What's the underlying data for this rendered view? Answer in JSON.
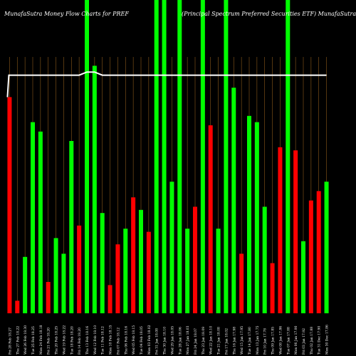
{
  "header": {
    "left": "MunafaSutra  Money Flow  Charts for PREF",
    "right": "(Principal Spectrum Preferred Securities ETF) MunafaSutra.com"
  },
  "chart_data": {
    "type": "bar",
    "title": "MunafaSutra  Money Flow  Charts for PREF",
    "subtitle": "(Principal Spectrum Preferred Securities ETF) MunafaSutra.com",
    "xlabel": "",
    "ylabel": "",
    "ylim": [
      0,
      100
    ],
    "grid": true,
    "colors": {
      "up": "#00ff00",
      "down": "#ff0000",
      "line": "#ffffff",
      "grid": "#8b5a1b",
      "background": "#000000"
    },
    "categories": [
      "Fri 28 Feb 2025",
      "Thu 27 Feb 2025",
      "Wed 26 Feb 2025",
      "Tue 25 Feb 2025",
      "Mon 24 Feb 2025",
      "Fri 21 Feb 2025",
      "Thu 20 Feb 2025",
      "Wed 19 Feb 2025",
      "Tue 18 Feb 2025",
      "Fri 14 Feb 2025",
      "Thu 13 Feb 2025",
      "Wed 12 Feb 2025",
      "Tue 11 Feb 2025",
      "Mon 10 Feb 2025",
      "Fri 07 Feb 2025",
      "Thu 06 Feb 2025",
      "Wed 05 Feb 2025",
      "Tue 04 Feb 2025",
      "Mon 03 Feb 2025",
      "Fri 31 Jan 2025",
      "Thu 30 Jan 2025",
      "Wed 29 Jan 2025",
      "Tue 28 Jan 2025",
      "Mon 27 Jan 2025",
      "Fri 24 Jan 2025",
      "Thu 23 Jan 2025",
      "Wed 22 Jan 2025",
      "Tue 21 Jan 2025",
      "Fri 17 Jan 2025",
      "Thu 16 Jan 2025",
      "Wed 15 Jan 2025",
      "Tue 14 Jan 2025",
      "Mon 13 Jan 2025",
      "Fri 10 Jan 2025",
      "Thu 09 Jan 2025",
      "Wed 08 Jan 2025",
      "Tue 07 Jan 2025",
      "Mon 06 Jan 2025",
      "Fri 03 Jan 2025",
      "Thu 02 Jan 2025",
      "Tue 31 Dec 2024",
      "Mon 30 Dec 2024"
    ],
    "tick_labels": [
      "Fri 28 Feb 18.27",
      "Thu 27 Feb 18.22",
      "Wed 26 Feb 18.30",
      "Tue 25 Feb 18.25",
      "Mon 24 Feb 18.18",
      "Fri 21 Feb 18.20",
      "Thu 20 Feb 18.25",
      "Wed 19 Feb 18.22",
      "Tue 18 Feb 18.20",
      "Fri 14 Feb 18.20",
      "Thu 13 Feb 18.16",
      "Wed 12 Feb 18.10",
      "Tue 11 Feb 18.12",
      "Mon 10 Feb 18.15",
      "Fri 07 Feb 18.12",
      "Thu 06 Feb 18.16",
      "Wed 05 Feb 18.15",
      "Tue 04 Feb 18.05",
      "Mon 03 Feb 18.02",
      "Fri 31 Jan 18.08",
      "Thu 30 Jan 18.10",
      "Wed 29 Jan 18.05",
      "Tue 28 Jan 18.06",
      "Mon 27 Jan 18.03",
      "Fri 24 Jan 18.07",
      "Thu 23 Jan 18.09",
      "Wed 22 Jan 18.10",
      "Tue 21 Jan 18.08",
      "Fri 17 Jan 18.02",
      "Thu 16 Jan 17.98",
      "Wed 15 Jan 17.95",
      "Tue 14 Jan 17.80",
      "Mon 13 Jan 17.75",
      "Fri 10 Jan 17.78",
      "Thu 09 Jan 17.85",
      "Wed 08 Jan 17.86",
      "Tue 07 Jan 17.88",
      "Mon 06 Jan 17.90",
      "Fri 03 Jan 17.92",
      "Thu 02 Jan 17.88",
      "Tue 31 Dec 17.90",
      "Mon 30 Dec 17.86"
    ],
    "values": [
      69,
      4,
      18,
      61,
      58,
      10,
      24,
      19,
      55,
      28,
      100,
      79,
      32,
      9,
      22,
      27,
      37,
      33,
      26,
      100,
      100,
      42,
      100,
      27,
      34,
      100,
      60,
      27,
      100,
      72,
      19,
      63,
      61,
      34,
      16,
      53,
      100,
      52,
      23,
      36,
      39,
      42
    ],
    "directions": [
      "down",
      "down",
      "up",
      "up",
      "up",
      "down",
      "up",
      "up",
      "up",
      "down",
      "up",
      "up",
      "up",
      "down",
      "down",
      "up",
      "down",
      "up",
      "down",
      "up",
      "up",
      "up",
      "up",
      "up",
      "down",
      "up",
      "down",
      "up",
      "up",
      "up",
      "down",
      "up",
      "up",
      "up",
      "down",
      "down",
      "up",
      "down",
      "up",
      "down",
      "down",
      "up"
    ],
    "line_values": [
      76,
      76,
      76,
      76,
      76,
      76,
      76,
      76,
      76,
      76,
      77,
      77,
      76,
      76,
      76,
      76,
      76,
      76,
      76,
      76,
      76,
      76,
      76,
      76,
      76,
      76,
      76,
      76,
      76,
      76,
      76,
      76,
      76,
      76,
      76,
      76,
      76,
      76,
      76,
      76,
      76,
      76
    ]
  }
}
